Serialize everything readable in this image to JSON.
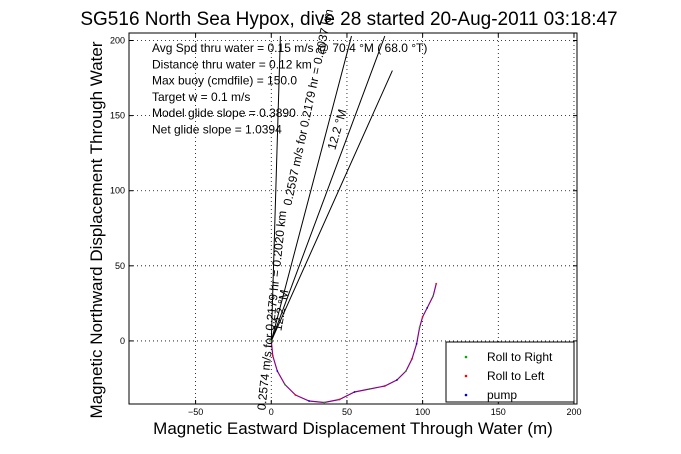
{
  "chart_data": {
    "type": "line",
    "title": "SG516 North Sea Hypox, dive 28 started 20-Aug-2011 03:18:47",
    "xlabel": "Magnetic Eastward Displacement Through Water (m)",
    "ylabel": "Magnetic Northward Displacement Through Water",
    "xlim": [
      -94,
      202
    ],
    "ylim": [
      -42,
      205
    ],
    "xticks": [
      -50,
      0,
      50,
      100,
      150,
      200
    ],
    "yticks": [
      0,
      50,
      100,
      150,
      200
    ],
    "xtick_labels": [
      "−50",
      "0",
      "50",
      "100",
      "150",
      "200"
    ],
    "ytick_labels": [
      "0",
      "50",
      "100",
      "150",
      "200"
    ],
    "grid": true,
    "legend_position": "bottom-right",
    "info_text": [
      "Avg Spd thru water =  0.15 m/s @  70.4   °M ( 68.0 °T)",
      "Distance thru water =  0.12 km",
      "Max buoy (cmdfile) = 150.0",
      "Target w = 0.1 m/s",
      "Model glide slope = 0.3890",
      "Net glide slope = 1.0394"
    ],
    "vector_labels": [
      {
        "text": "0.2597 m/s for 0.2179 hr = 0.2037 km",
        "x": 27,
        "y": 155,
        "angle_deg": -78
      },
      {
        "text": "0.2574 m/s for 0.2179 hr = 0.2020 km",
        "x": 3,
        "y": 20,
        "angle_deg": -84
      },
      {
        "text": "12.2 °M",
        "x": 9,
        "y": 20,
        "angle_deg": -80
      },
      {
        "text": "12.2 °M",
        "x": 46,
        "y": 140,
        "angle_deg": -74
      }
    ],
    "vector_lines": [
      {
        "x": [
          0,
          6
        ],
        "y": [
          0,
          203
        ]
      },
      {
        "x": [
          0,
          53
        ],
        "y": [
          0,
          203
        ]
      },
      {
        "x": [
          0,
          75
        ],
        "y": [
          0,
          203
        ]
      },
      {
        "x": [
          0,
          80
        ],
        "y": [
          0,
          180
        ]
      }
    ],
    "series": [
      {
        "name": "Roll to Right",
        "color": "#00aa00",
        "marker": "."
      },
      {
        "name": "Roll to Left",
        "color": "#ff0000",
        "marker": "."
      },
      {
        "name": "pump",
        "color": "#0000cc",
        "marker": "."
      }
    ],
    "track": {
      "x": [
        0,
        1,
        4,
        9,
        16,
        25,
        35,
        45,
        55,
        65,
        75,
        83,
        89,
        93,
        96,
        98,
        100,
        103,
        107,
        109
      ],
      "y": [
        0,
        -10,
        -20,
        -29,
        -36,
        -40,
        -41,
        -39,
        -34,
        -32,
        -30,
        -26,
        -20,
        -12,
        -2,
        9,
        16,
        22,
        30,
        38
      ],
      "color": "#8b008b"
    }
  }
}
